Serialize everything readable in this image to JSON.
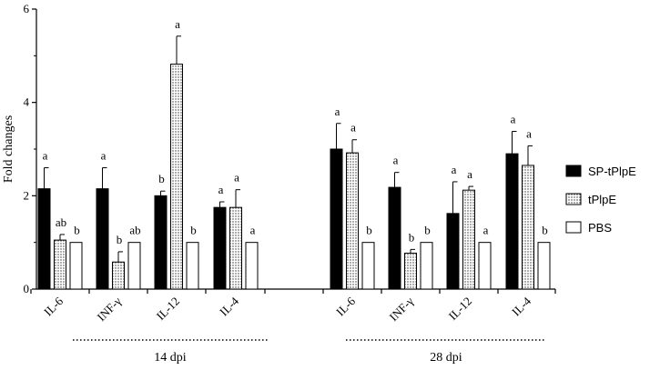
{
  "chart_data": {
    "type": "bar",
    "ylabel": "Fold changes",
    "ylim": [
      0,
      6
    ],
    "yticks": [
      "0",
      "2",
      "4",
      "6"
    ],
    "grid": false,
    "legend_position": "right",
    "series": [
      {
        "name": "SP-tPlpE",
        "style": "solid-black",
        "values": [
          2.15,
          2.15,
          2.0,
          1.75,
          3.0,
          2.18,
          1.62,
          2.9
        ],
        "errors": [
          0.45,
          0.45,
          0.1,
          0.12,
          0.55,
          0.32,
          0.68,
          0.48
        ],
        "sig": [
          "a",
          "a",
          "b",
          "a",
          "a",
          "a",
          "a",
          "a"
        ]
      },
      {
        "name": "tPlpE",
        "style": "dotted",
        "values": [
          1.05,
          0.58,
          4.82,
          1.75,
          2.92,
          0.77,
          2.12,
          2.65
        ],
        "errors": [
          0.12,
          0.22,
          0.6,
          0.38,
          0.28,
          0.08,
          0.08,
          0.42
        ],
        "sig": [
          "ab",
          "b",
          "a",
          "a",
          "a",
          "b",
          "a",
          "a"
        ]
      },
      {
        "name": "PBS",
        "style": "white",
        "values": [
          1.0,
          1.0,
          1.0,
          1.0,
          1.0,
          1.0,
          1.0,
          1.0
        ],
        "errors": [
          0,
          0,
          0,
          0,
          0,
          0,
          0,
          0
        ],
        "sig": [
          "b",
          "ab",
          "b",
          "a",
          "b",
          "b",
          "a",
          "b"
        ]
      }
    ],
    "categories": [
      "IL-6",
      "INF-γ",
      "IL-12",
      "IL-4",
      "IL-6",
      "INF-γ",
      "IL-12",
      "IL-4"
    ],
    "groups": [
      {
        "label": "14 dpi",
        "categories": [
          0,
          1,
          2,
          3
        ]
      },
      {
        "label": "28 dpi",
        "categories": [
          4,
          5,
          6,
          7
        ]
      }
    ]
  }
}
